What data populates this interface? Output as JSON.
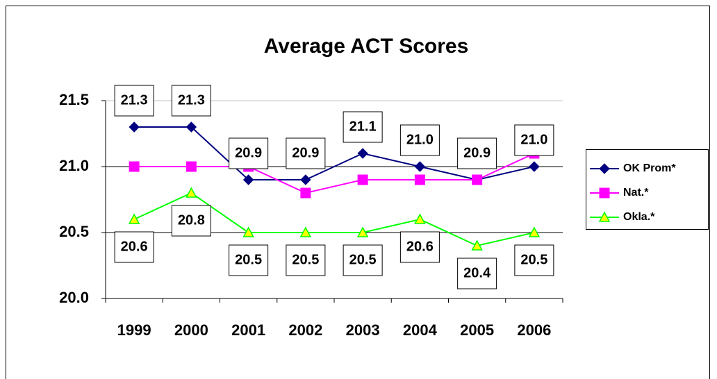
{
  "chart_data": {
    "type": "line",
    "title": "Average ACT Scores",
    "categories": [
      "1999",
      "2000",
      "2001",
      "2002",
      "2003",
      "2004",
      "2005",
      "2006"
    ],
    "series": [
      {
        "name": "OK Prom*",
        "color": "#000080",
        "marker": "diamond",
        "values": [
          21.3,
          21.3,
          20.9,
          20.9,
          21.1,
          21.0,
          20.9,
          21.0
        ],
        "value_labels": [
          "21.3",
          "21.3",
          "20.9",
          "20.9",
          "21.1",
          "21.0",
          "20.9",
          "21.0"
        ],
        "label_position": "above"
      },
      {
        "name": "Nat.*",
        "color": "#ff00ff",
        "marker": "square",
        "values": [
          21.0,
          21.0,
          21.0,
          20.8,
          20.9,
          20.9,
          20.9,
          21.1
        ]
      },
      {
        "name": "Okla.*",
        "color": "#00ff00",
        "marker": "triangle",
        "values": [
          20.6,
          20.8,
          20.5,
          20.5,
          20.5,
          20.6,
          20.4,
          20.5
        ],
        "value_labels": [
          "20.6",
          "20.8",
          "20.5",
          "20.5",
          "20.5",
          "20.6",
          "20.4",
          "20.5"
        ],
        "label_position": "below"
      }
    ],
    "ylim": [
      20.0,
      21.5
    ],
    "yticks": [
      {
        "value": 20.0,
        "label": "20.0"
      },
      {
        "value": 20.5,
        "label": "20.5"
      },
      {
        "value": 21.0,
        "label": "21.0"
      },
      {
        "value": 21.5,
        "label": "21.5"
      }
    ],
    "grid": true,
    "legend": "right"
  }
}
